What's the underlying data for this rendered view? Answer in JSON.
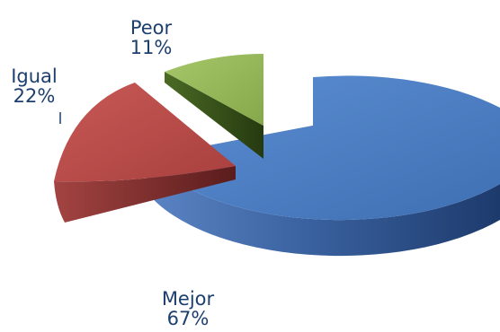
{
  "chart_data": {
    "type": "pie",
    "title": "",
    "slices": [
      {
        "name": "Mejor",
        "percent_label": "67%",
        "value": 67,
        "color": "#4f7fc2"
      },
      {
        "name": "Igual",
        "percent_label": "22%",
        "value": 22,
        "color": "#c0504d"
      },
      {
        "name": "Peor",
        "percent_label": "11%",
        "value": 11,
        "color": "#9bbb59"
      }
    ],
    "style": "3d-exploded"
  }
}
